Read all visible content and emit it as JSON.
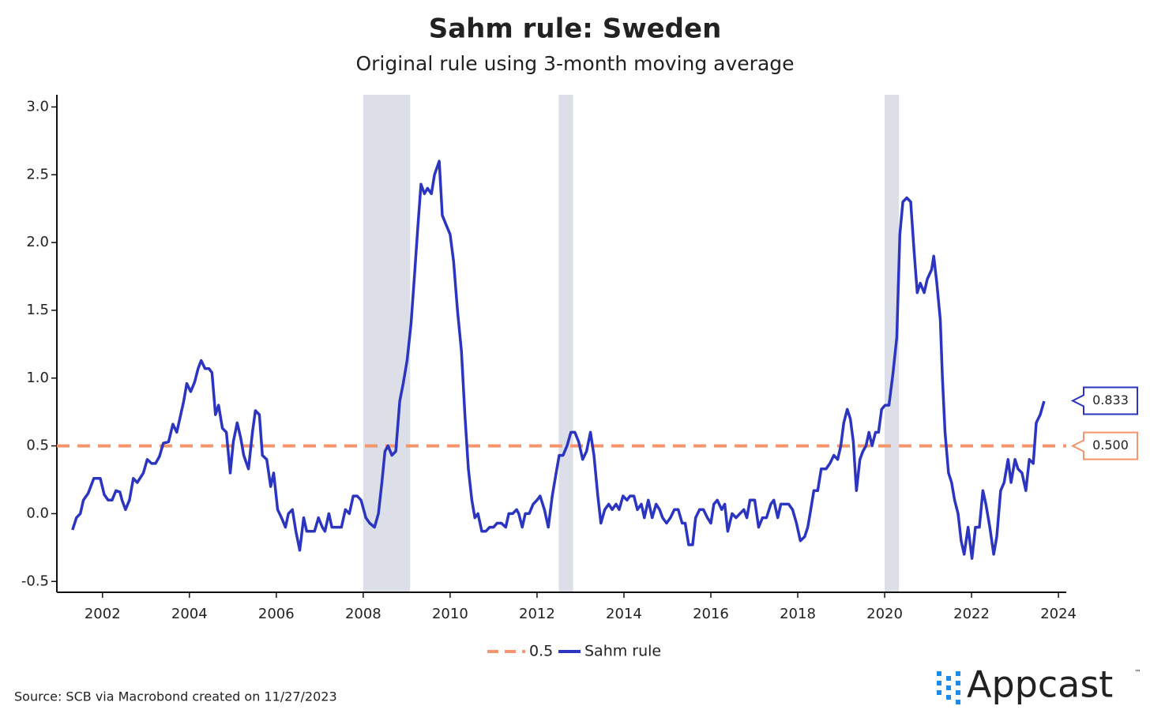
{
  "chart_data": {
    "type": "line",
    "title": "Sahm rule: Sweden",
    "subtitle": "Original rule using 3-month moving average",
    "source": "Source: SCB via Macrobond created on 11/27/2023",
    "logo": {
      "name": "Appcast",
      "mark": "™"
    },
    "xlim": [
      2000.95,
      2024.18
    ],
    "xticks": [
      2002,
      2004,
      2006,
      2008,
      2010,
      2012,
      2014,
      2016,
      2018,
      2020,
      2022,
      2024
    ],
    "ylim": [
      -0.58,
      3.09
    ],
    "yticks": [
      {
        "value": -0.5,
        "label": "-0.5"
      },
      {
        "value": 0,
        "label": "0.0"
      },
      {
        "value": 0.5,
        "label": "0.5"
      },
      {
        "value": 1,
        "label": "1.0"
      },
      {
        "value": 1.5,
        "label": "1.5"
      },
      {
        "value": 2,
        "label": "2.0"
      },
      {
        "value": 2.5,
        "label": "2.5"
      },
      {
        "value": 3,
        "label": "3.0"
      }
    ],
    "recessions": [
      [
        2008.0,
        2009.08
      ],
      [
        2012.5,
        2012.83
      ],
      [
        2020.0,
        2020.33
      ]
    ],
    "recession_color": "#dcdfe8",
    "reference": {
      "name": "0.5",
      "color": "#f4956b",
      "value": 0.5,
      "end_label": {
        "value": 0.5,
        "label": "0.500"
      }
    },
    "x": [
      2001.31,
      2001.4,
      2001.49,
      2001.56,
      2001.67,
      2001.8,
      2001.95,
      2002.04,
      2002.13,
      2002.22,
      2002.31,
      2002.4,
      2002.45,
      2002.53,
      2002.62,
      2002.71,
      2002.8,
      2002.94,
      2003.03,
      2003.13,
      2003.22,
      2003.31,
      2003.4,
      2003.52,
      2003.62,
      2003.71,
      2003.8,
      2003.87,
      2003.94,
      2004.03,
      2004.12,
      2004.2,
      2004.27,
      2004.36,
      2004.45,
      2004.52,
      2004.6,
      2004.67,
      2004.76,
      2004.85,
      2004.94,
      2005.01,
      2005.1,
      2005.18,
      2005.25,
      2005.36,
      2005.45,
      2005.52,
      2005.61,
      2005.68,
      2005.78,
      2005.87,
      2005.94,
      2006.03,
      2006.12,
      2006.21,
      2006.28,
      2006.37,
      2006.45,
      2006.54,
      2006.63,
      2006.7,
      2006.81,
      2006.88,
      2006.97,
      2007.06,
      2007.12,
      2007.21,
      2007.28,
      2007.39,
      2007.5,
      2007.59,
      2007.68,
      2007.77,
      2007.86,
      2007.95,
      2008.06,
      2008.15,
      2008.26,
      2008.35,
      2008.43,
      2008.5,
      2008.57,
      2008.66,
      2008.75,
      2008.84,
      2008.92,
      2009.01,
      2009.1,
      2009.19,
      2009.26,
      2009.33,
      2009.41,
      2009.48,
      2009.57,
      2009.64,
      2009.75,
      2009.82,
      2009.91,
      2010.0,
      2010.08,
      2010.17,
      2010.26,
      2010.34,
      2010.42,
      2010.5,
      2010.57,
      2010.64,
      2010.73,
      2010.82,
      2010.91,
      2011.0,
      2011.08,
      2011.18,
      2011.28,
      2011.35,
      2011.44,
      2011.53,
      2011.58,
      2011.66,
      2011.73,
      2011.82,
      2011.91,
      2012.0,
      2012.07,
      2012.17,
      2012.26,
      2012.35,
      2012.44,
      2012.51,
      2012.6,
      2012.69,
      2012.78,
      2012.87,
      2012.96,
      2013.05,
      2013.14,
      2013.23,
      2013.31,
      2013.4,
      2013.47,
      2013.56,
      2013.65,
      2013.73,
      2013.82,
      2013.89,
      2013.98,
      2014.07,
      2014.14,
      2014.23,
      2014.31,
      2014.4,
      2014.47,
      2014.56,
      2014.65,
      2014.74,
      2014.82,
      2014.89,
      2014.98,
      2015.07,
      2015.16,
      2015.25,
      2015.34,
      2015.41,
      2015.49,
      2015.58,
      2015.65,
      2015.74,
      2015.83,
      2015.92,
      2016.0,
      2016.07,
      2016.15,
      2016.25,
      2016.32,
      2016.39,
      2016.49,
      2016.58,
      2016.67,
      2016.76,
      2016.83,
      2016.9,
      2017.01,
      2017.1,
      2017.19,
      2017.28,
      2017.38,
      2017.45,
      2017.54,
      2017.61,
      2017.7,
      2017.79,
      2017.88,
      2017.97,
      2018.06,
      2018.16,
      2018.23,
      2018.3,
      2018.37,
      2018.46,
      2018.54,
      2018.65,
      2018.74,
      2018.83,
      2018.92,
      2018.99,
      2019.06,
      2019.14,
      2019.21,
      2019.28,
      2019.35,
      2019.43,
      2019.5,
      2019.57,
      2019.64,
      2019.71,
      2019.79,
      2019.86,
      2019.93,
      2020.01,
      2020.1,
      2020.19,
      2020.28,
      2020.35,
      2020.42,
      2020.51,
      2020.6,
      2020.68,
      2020.75,
      2020.82,
      2020.91,
      2020.98,
      2021.08,
      2021.13,
      2021.2,
      2021.28,
      2021.33,
      2021.39,
      2021.47,
      2021.54,
      2021.61,
      2021.69,
      2021.76,
      2021.83,
      2021.92,
      2022.01,
      2022.09,
      2022.18,
      2022.26,
      2022.33,
      2022.42,
      2022.51,
      2022.58,
      2022.67,
      2022.75,
      2022.84,
      2022.91,
      2023.0,
      2023.07,
      2023.16,
      2023.25,
      2023.33,
      2023.42,
      2023.49,
      2023.58,
      2023.67
    ],
    "series": [
      {
        "name": "Sahm rule",
        "color": "#2b35c0",
        "end_label": 0.833,
        "values": [
          -0.12,
          -0.03,
          0.0,
          0.1,
          0.15,
          0.26,
          0.26,
          0.14,
          0.1,
          0.1,
          0.17,
          0.16,
          0.1,
          0.03,
          0.1,
          0.26,
          0.23,
          0.3,
          0.4,
          0.37,
          0.37,
          0.42,
          0.52,
          0.53,
          0.66,
          0.6,
          0.73,
          0.83,
          0.96,
          0.9,
          0.97,
          1.07,
          1.13,
          1.07,
          1.07,
          1.04,
          0.73,
          0.8,
          0.63,
          0.6,
          0.3,
          0.53,
          0.67,
          0.56,
          0.43,
          0.33,
          0.6,
          0.76,
          0.73,
          0.43,
          0.4,
          0.2,
          0.3,
          0.03,
          -0.03,
          -0.1,
          0.0,
          0.03,
          -0.13,
          -0.27,
          -0.03,
          -0.13,
          -0.13,
          -0.13,
          -0.03,
          -0.1,
          -0.13,
          0.0,
          -0.1,
          -0.1,
          -0.1,
          0.03,
          0.0,
          0.13,
          0.13,
          0.1,
          -0.03,
          -0.07,
          -0.1,
          0.0,
          0.23,
          0.46,
          0.5,
          0.43,
          0.46,
          0.83,
          0.96,
          1.13,
          1.4,
          1.8,
          2.13,
          2.43,
          2.36,
          2.4,
          2.36,
          2.5,
          2.6,
          2.2,
          2.13,
          2.06,
          1.86,
          1.5,
          1.2,
          0.73,
          0.33,
          0.1,
          -0.03,
          0.0,
          -0.13,
          -0.13,
          -0.1,
          -0.1,
          -0.07,
          -0.07,
          -0.1,
          0.0,
          0.0,
          0.03,
          0.0,
          -0.1,
          0.0,
          0.0,
          0.07,
          0.1,
          0.13,
          0.03,
          -0.1,
          0.13,
          0.3,
          0.43,
          0.43,
          0.5,
          0.6,
          0.6,
          0.53,
          0.4,
          0.46,
          0.6,
          0.43,
          0.13,
          -0.07,
          0.03,
          0.07,
          0.03,
          0.07,
          0.03,
          0.13,
          0.1,
          0.13,
          0.13,
          0.03,
          0.07,
          -0.03,
          0.1,
          -0.03,
          0.07,
          0.03,
          -0.03,
          -0.07,
          -0.03,
          0.03,
          0.03,
          -0.07,
          -0.07,
          -0.23,
          -0.23,
          -0.03,
          0.03,
          0.03,
          -0.03,
          -0.07,
          0.07,
          0.1,
          0.03,
          0.07,
          -0.13,
          0.0,
          -0.03,
          0.0,
          0.03,
          -0.03,
          0.1,
          0.1,
          -0.1,
          -0.03,
          -0.03,
          0.07,
          0.1,
          -0.03,
          0.07,
          0.07,
          0.07,
          0.03,
          -0.07,
          -0.2,
          -0.17,
          -0.1,
          0.03,
          0.17,
          0.17,
          0.33,
          0.33,
          0.37,
          0.43,
          0.4,
          0.5,
          0.67,
          0.77,
          0.7,
          0.53,
          0.17,
          0.4,
          0.46,
          0.5,
          0.6,
          0.5,
          0.6,
          0.6,
          0.77,
          0.8,
          0.8,
          1.03,
          1.3,
          2.06,
          2.3,
          2.33,
          2.3,
          1.93,
          1.63,
          1.7,
          1.63,
          1.73,
          1.8,
          1.9,
          1.7,
          1.43,
          1.0,
          0.6,
          0.3,
          0.23,
          0.1,
          0.0,
          -0.2,
          -0.3,
          -0.1,
          -0.33,
          -0.1,
          -0.1,
          0.17,
          0.07,
          -0.1,
          -0.3,
          -0.17,
          0.17,
          0.23,
          0.4,
          0.23,
          0.4,
          0.33,
          0.3,
          0.17,
          0.4,
          0.37,
          0.67,
          0.73,
          0.83
        ]
      }
    ]
  }
}
